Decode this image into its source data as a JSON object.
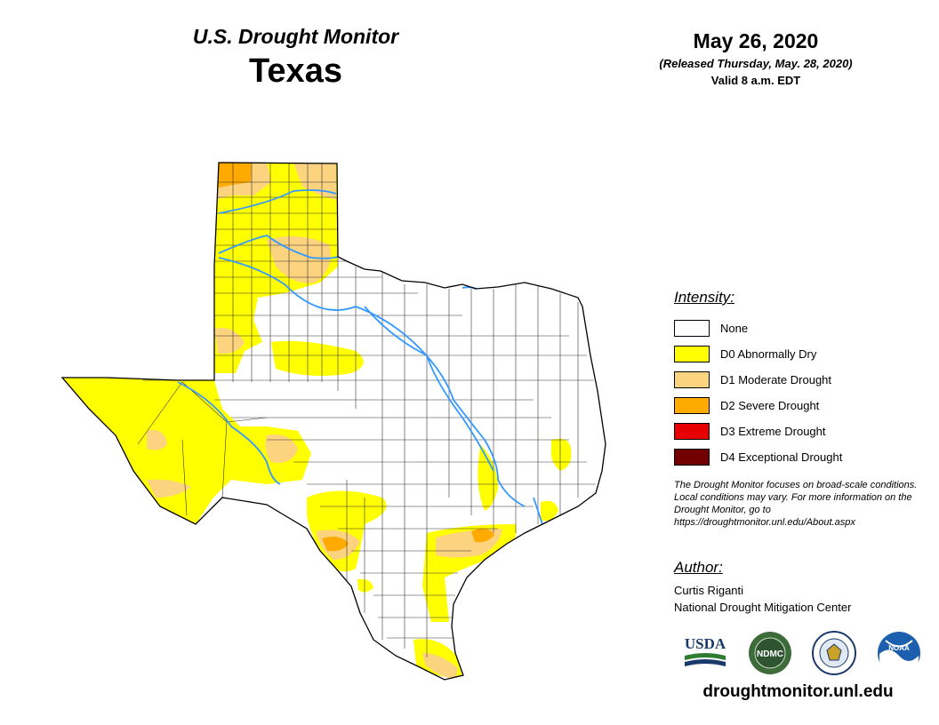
{
  "header": {
    "monitor_title": "U.S. Drought Monitor",
    "state": "Texas",
    "date": "May 26, 2020",
    "release_note": "(Released Thursday, May. 28, 2020)",
    "valid_time": "Valid 8 a.m. EDT"
  },
  "legend": {
    "title": "Intensity:",
    "items": [
      {
        "label": "None",
        "color": "#ffffff"
      },
      {
        "label": "D0 Abnormally Dry",
        "color": "#ffff00"
      },
      {
        "label": "D1 Moderate Drought",
        "color": "#fcd37f"
      },
      {
        "label": "D2 Severe Drought",
        "color": "#ffaa00"
      },
      {
        "label": "D3 Extreme Drought",
        "color": "#e60000"
      },
      {
        "label": "D4 Exceptional Drought",
        "color": "#730000"
      }
    ]
  },
  "disclaimer": "The Drought Monitor focuses on broad-scale conditions. Local conditions may vary. For more information on the Drought Monitor, go to https://droughtmonitor.unl.edu/About.aspx",
  "author": {
    "title": "Author:",
    "name": "Curtis Riganti",
    "organization": "National Drought Mitigation Center"
  },
  "logos": {
    "usda": "USDA",
    "ndmc": "NDMC",
    "noaa": "NOAA"
  },
  "website": "droughtmonitor.unl.edu"
}
